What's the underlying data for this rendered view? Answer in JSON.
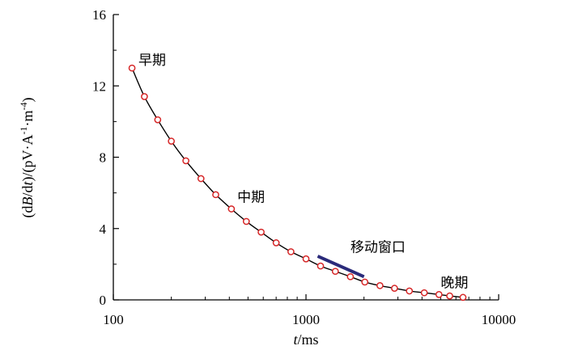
{
  "chart_data": {
    "type": "scatter",
    "xscale": "log",
    "xlim": [
      100,
      10000
    ],
    "ylim": [
      0,
      16
    ],
    "grid": false,
    "xticks": [
      "100",
      "1000",
      "10000"
    ],
    "yticks": [
      "0",
      "4",
      "8",
      "12",
      "16"
    ],
    "xlabel": "t/ms",
    "ylabel": "(dB/dt)/(pV·A⁻¹·m⁻⁴)",
    "series": [
      {
        "marker": "open-circle",
        "color": "#d62728",
        "line_color": "#000000",
        "x": [
          125,
          145,
          170,
          200,
          238,
          285,
          340,
          410,
          490,
          585,
          700,
          835,
          1000,
          1190,
          1420,
          1700,
          2020,
          2420,
          2880,
          3440,
          4110,
          4900,
          5570,
          6530
        ],
        "y": [
          13.0,
          11.4,
          10.1,
          8.9,
          7.8,
          6.8,
          5.9,
          5.1,
          4.4,
          3.8,
          3.2,
          2.7,
          2.3,
          1.9,
          1.6,
          1.3,
          1.0,
          0.8,
          0.65,
          0.5,
          0.4,
          0.3,
          0.22,
          0.14
        ]
      }
    ],
    "annotations": [
      {
        "text": "早期",
        "x": 135,
        "y": 13.2
      },
      {
        "text": "中期",
        "x": 440,
        "y": 5.5
      },
      {
        "text": "移动窗口",
        "x": 1700,
        "y": 2.7
      },
      {
        "text": "晚期",
        "x": 5000,
        "y": 0.7
      }
    ],
    "moving_window": {
      "x": [
        1150,
        2000
      ],
      "y": [
        2.45,
        1.3
      ],
      "color": "#2a2a7a"
    }
  }
}
